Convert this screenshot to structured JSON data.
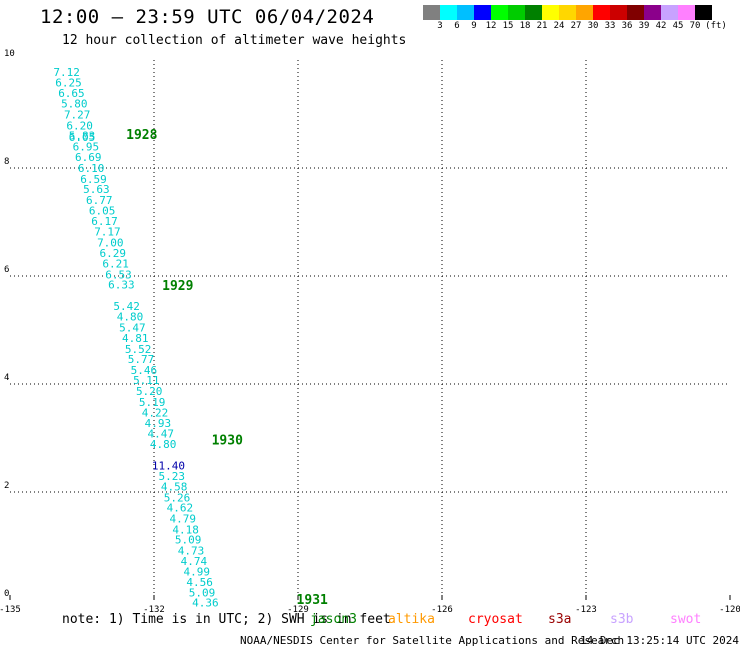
{
  "header": {
    "title": "12:00 – 23:59 UTC 06/04/2024",
    "subtitle": "12 hour collection of altimeter wave heights"
  },
  "colorbar": {
    "swatches": [
      "#808080",
      "#00ffff",
      "#00bfff",
      "#0000ff",
      "#00ff00",
      "#00cc00",
      "#008000",
      "#ffff00",
      "#ffd700",
      "#ffa500",
      "#ff0000",
      "#cc0000",
      "#800000",
      "#8b008b",
      "#c8a2ff",
      "#ff80ff",
      "#000000"
    ],
    "labels": [
      "3",
      "6",
      "9",
      "12",
      "15",
      "18",
      "21",
      "24",
      "27",
      "30",
      "33",
      "36",
      "39",
      "42",
      "45",
      "70",
      "(ft)"
    ]
  },
  "map": {
    "lon_ticks": [
      "-135",
      "-132",
      "-129",
      "-126",
      "-123",
      "-120"
    ],
    "lat_ticks": [
      "0",
      "2",
      "4",
      "6",
      "8",
      "10"
    ],
    "lon_range": [
      -135,
      -120
    ],
    "lat_range": [
      0,
      10
    ],
    "track_color": "#00cccc",
    "high_color": "#0000aa",
    "time_color": "#008000",
    "readings": [
      {
        "lon": -133.82,
        "lat": 9.78,
        "swh": "7.12"
      },
      {
        "lon": -133.78,
        "lat": 9.58,
        "swh": "6.25"
      },
      {
        "lon": -133.72,
        "lat": 9.39,
        "swh": "6.65"
      },
      {
        "lon": -133.66,
        "lat": 9.19,
        "swh": "5.80"
      },
      {
        "lon": -133.6,
        "lat": 8.99,
        "swh": "7.27"
      },
      {
        "lon": -133.55,
        "lat": 8.79,
        "swh": "6.20"
      },
      {
        "lon": -133.5,
        "lat": 8.6,
        "swh": "5.83"
      },
      {
        "lon": -133.5,
        "lat": 8.57,
        "swh": "6.05"
      },
      {
        "lon": -133.42,
        "lat": 8.4,
        "swh": "6.95"
      },
      {
        "lon": -133.37,
        "lat": 8.2,
        "swh": "6.69"
      },
      {
        "lon": -133.31,
        "lat": 8.0,
        "swh": "6.10"
      },
      {
        "lon": -133.26,
        "lat": 7.8,
        "swh": "6.59"
      },
      {
        "lon": -133.2,
        "lat": 7.61,
        "swh": "5.63"
      },
      {
        "lon": -133.14,
        "lat": 7.41,
        "swh": "6.77"
      },
      {
        "lon": -133.08,
        "lat": 7.21,
        "swh": "6.05"
      },
      {
        "lon": -133.03,
        "lat": 7.02,
        "swh": "6.17"
      },
      {
        "lon": -132.97,
        "lat": 6.82,
        "swh": "7.17"
      },
      {
        "lon": -132.91,
        "lat": 6.62,
        "swh": "7.00"
      },
      {
        "lon": -132.86,
        "lat": 6.43,
        "swh": "6.29"
      },
      {
        "lon": -132.8,
        "lat": 6.23,
        "swh": "6.21"
      },
      {
        "lon": -132.74,
        "lat": 6.03,
        "swh": "6.53"
      },
      {
        "lon": -132.68,
        "lat": 5.84,
        "swh": "6.33"
      },
      {
        "lon": -132.57,
        "lat": 5.44,
        "swh": "5.42"
      },
      {
        "lon": -132.5,
        "lat": 5.25,
        "swh": "4.80"
      },
      {
        "lon": -132.45,
        "lat": 5.05,
        "swh": "5.47"
      },
      {
        "lon": -132.39,
        "lat": 4.85,
        "swh": "4.81"
      },
      {
        "lon": -132.33,
        "lat": 4.65,
        "swh": "5.52"
      },
      {
        "lon": -132.27,
        "lat": 4.46,
        "swh": "5.77"
      },
      {
        "lon": -132.21,
        "lat": 4.26,
        "swh": "5.46"
      },
      {
        "lon": -132.16,
        "lat": 4.07,
        "swh": "5.11"
      },
      {
        "lon": -132.1,
        "lat": 3.87,
        "swh": "5.20"
      },
      {
        "lon": -132.04,
        "lat": 3.67,
        "swh": "5.19"
      },
      {
        "lon": -131.98,
        "lat": 3.47,
        "swh": "4.22"
      },
      {
        "lon": -131.92,
        "lat": 3.28,
        "swh": "4.93"
      },
      {
        "lon": -131.86,
        "lat": 3.08,
        "swh": "4.47"
      },
      {
        "lon": -131.81,
        "lat": 2.89,
        "swh": "4.80"
      },
      {
        "lon": -131.7,
        "lat": 2.49,
        "swh": "11.40",
        "high": true
      },
      {
        "lon": -131.63,
        "lat": 2.3,
        "swh": "5.23"
      },
      {
        "lon": -131.58,
        "lat": 2.1,
        "swh": "4.58"
      },
      {
        "lon": -131.52,
        "lat": 1.9,
        "swh": "5.26"
      },
      {
        "lon": -131.46,
        "lat": 1.71,
        "swh": "4.62"
      },
      {
        "lon": -131.4,
        "lat": 1.51,
        "swh": "4.79"
      },
      {
        "lon": -131.34,
        "lat": 1.31,
        "swh": "4.18"
      },
      {
        "lon": -131.29,
        "lat": 1.12,
        "swh": "5.09"
      },
      {
        "lon": -131.23,
        "lat": 0.92,
        "swh": "4.73"
      },
      {
        "lon": -131.17,
        "lat": 0.72,
        "swh": "4.74"
      },
      {
        "lon": -131.11,
        "lat": 0.53,
        "swh": "4.99"
      },
      {
        "lon": -131.05,
        "lat": 0.33,
        "swh": "4.56"
      },
      {
        "lon": -131.0,
        "lat": 0.14,
        "swh": "5.09"
      },
      {
        "lon": -130.93,
        "lat": -0.05,
        "swh": "4.36"
      }
    ],
    "time_labels": [
      {
        "lon": -132.58,
        "lat": 8.63,
        "text": "1928"
      },
      {
        "lon": -131.83,
        "lat": 5.83,
        "text": "1929"
      },
      {
        "lon": -130.8,
        "lat": 2.97,
        "text": "1930"
      },
      {
        "lon": -129.03,
        "lat": 0.02,
        "text": "1931"
      }
    ]
  },
  "footer": {
    "note": "note: 1) Time is in UTC; 2) SWH is in feet",
    "missions": [
      {
        "name": "jason3",
        "color": "#008000"
      },
      {
        "name": "altika",
        "color": "#ff9900"
      },
      {
        "name": "cryosat",
        "color": "#ff0000"
      },
      {
        "name": "s3a",
        "color": "#990000"
      },
      {
        "name": "s3b",
        "color": "#c8a2ff"
      },
      {
        "name": "swot",
        "color": "#ff80ff"
      }
    ],
    "credit": "NOAA/NESDIS Center for Satellite Applications and Research",
    "timestamp": "14 Dec 13:25:14 UTC 2024"
  }
}
